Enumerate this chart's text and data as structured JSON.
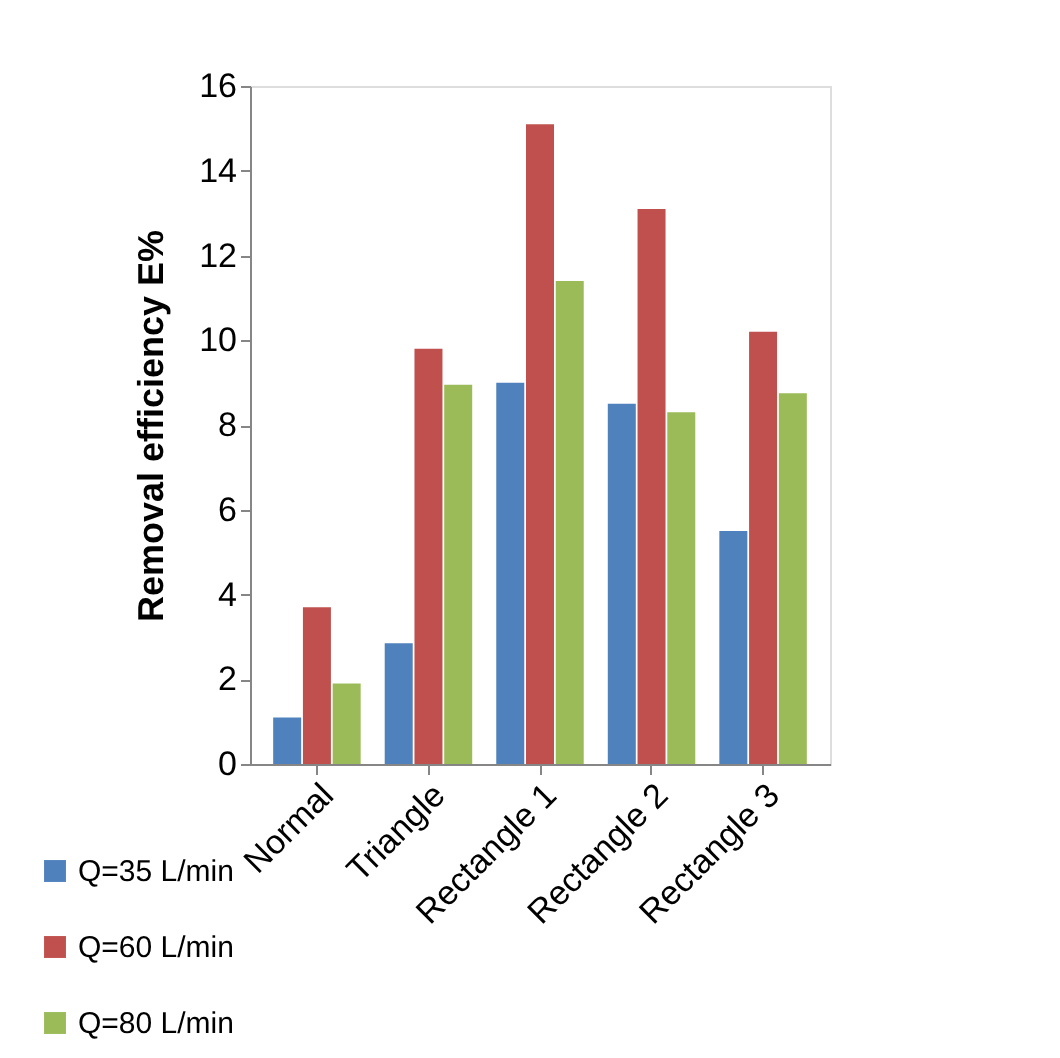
{
  "chart_data": {
    "type": "bar",
    "ylabel": "Removal efficiency E%",
    "categories": [
      "Normal",
      "Triangle",
      "Rectangle 1",
      "Rectangle 2",
      "Rectangle 3"
    ],
    "series": [
      {
        "name": "Q=35 L/min",
        "color": "#4f81bd",
        "values": [
          1.1,
          2.85,
          9.0,
          8.5,
          5.5
        ]
      },
      {
        "name": "Q=60 L/min",
        "color": "#c0504d",
        "values": [
          3.7,
          9.8,
          15.1,
          13.1,
          10.2
        ]
      },
      {
        "name": "Q=80 L/min",
        "color": "#9bbb59",
        "values": [
          1.9,
          8.95,
          11.4,
          8.3,
          8.75
        ]
      }
    ],
    "ylim": [
      0,
      16
    ],
    "yticks": [
      0,
      2,
      4,
      6,
      8,
      10,
      12,
      14,
      16
    ],
    "grid": false,
    "legend": "bottom left"
  }
}
